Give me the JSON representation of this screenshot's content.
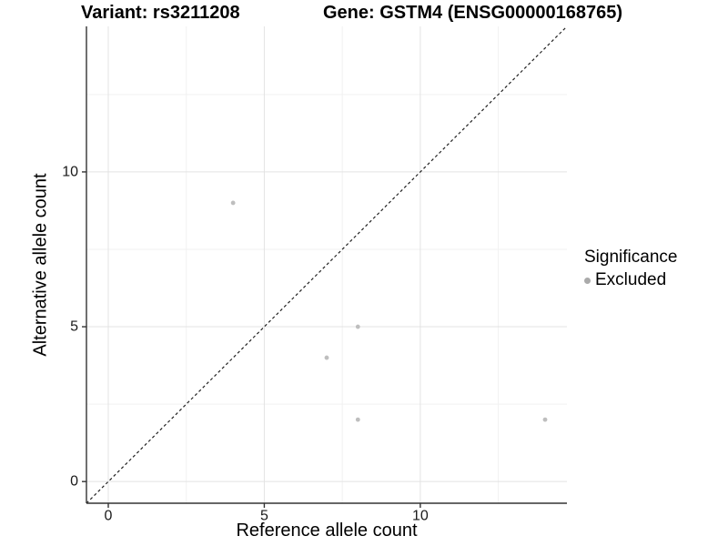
{
  "header": {
    "variant_title": "Variant: rs3211208",
    "gene_title": "Gene: GSTM4 (ENSG00000168765)"
  },
  "legend": {
    "title": "Significance",
    "items": [
      {
        "label": "Excluded",
        "color": "#aaaaaa"
      }
    ]
  },
  "colors": {
    "point": "#bebebe",
    "grid_major": "#e3e3e3",
    "grid_minor": "#f1f1f1",
    "axis": "#333333",
    "tick_label": "#1a1a1a",
    "dashed_line": "#222222"
  },
  "chart_data": {
    "type": "scatter",
    "title": "Variant: rs3211208    Gene: GSTM4 (ENSG00000168765)",
    "xlabel": "Reference allele count",
    "ylabel": "Alternative allele count",
    "xlim": [
      -0.7,
      14.7
    ],
    "ylim": [
      -0.7,
      14.7
    ],
    "x_ticks": [
      0,
      5,
      10
    ],
    "y_ticks": [
      0,
      5,
      10
    ],
    "minor_ticks": [
      2.5,
      7.5,
      12.5
    ],
    "grid": true,
    "legend_position": "right",
    "series": [
      {
        "name": "Excluded",
        "color": "#bebebe",
        "points": [
          [
            4,
            9
          ],
          [
            7,
            4
          ],
          [
            8,
            5
          ],
          [
            8,
            2
          ],
          [
            14,
            2
          ]
        ]
      }
    ],
    "reference_line": {
      "name": "identity-line",
      "style": "dashed",
      "from": [
        -0.7,
        -0.7
      ],
      "to": [
        14.7,
        14.7
      ]
    }
  }
}
